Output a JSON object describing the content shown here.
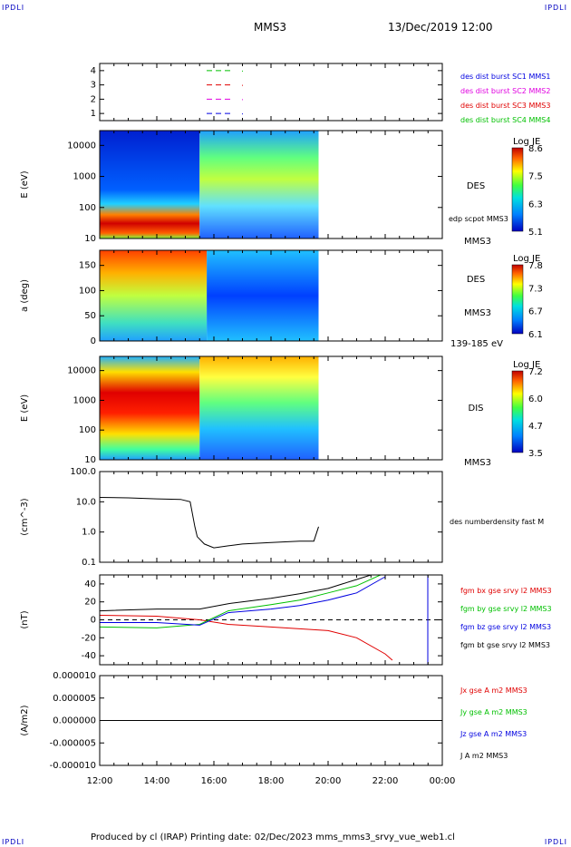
{
  "header": {
    "corner_tl": "IPDLI",
    "corner_tr": "IPDLI",
    "corner_bl": "IPDLI",
    "corner_br": "IPDLI",
    "spacecraft": "MMS3",
    "datetime": "13/Dec/2019 12:00"
  },
  "footer": {
    "text": "Produced by cl (IRAP)   Printing date: 02/Dec/2023   mms_mms3_srvy_vue_web1.cl"
  },
  "colors": {
    "red": "#e00000",
    "green": "#00c000",
    "blue": "#0000e0",
    "magenta": "#e000e0",
    "black": "#000000"
  },
  "chart_data": [
    {
      "type": "line",
      "panel": "burst-intervals",
      "ylim": [
        0.5,
        4.5
      ],
      "y_ticks": [
        "1",
        "2",
        "3",
        "4"
      ],
      "legend": [
        {
          "label": "des dist burst SC1 MMS1",
          "color": "#0000e0"
        },
        {
          "label": "des dist burst SC2 MMS2",
          "color": "#e000e0"
        },
        {
          "label": "des dist burst SC3 MMS3",
          "color": "#e00000"
        },
        {
          "label": "des dist burst SC4 MMS4",
          "color": "#00c000"
        }
      ],
      "series": [
        {
          "level": 4,
          "color": "#00c000",
          "x": [
            "16:00",
            "16:40"
          ]
        },
        {
          "level": 3,
          "color": "#e00000",
          "x": [
            "16:00",
            "16:40"
          ]
        },
        {
          "level": 2,
          "color": "#e000e0",
          "x": [
            "16:00",
            "16:40"
          ]
        },
        {
          "level": 1,
          "color": "#0000e0",
          "x": [
            "16:00",
            "16:40"
          ]
        }
      ]
    },
    {
      "type": "heatmap",
      "panel": "des-energy-spectrogram",
      "ylabel": "E (eV)",
      "y_scale": "log",
      "y_ticks": [
        "10",
        "100",
        "1000",
        "10000"
      ],
      "ylim": [
        10,
        30000
      ],
      "label": "DES",
      "sc_label": "MMS3",
      "overlay_label": "edp scpot MMS3",
      "colorbar": {
        "title": "Log JE",
        "ticks": [
          "8.6",
          "7.5",
          "6.3",
          "5.1"
        ],
        "range": [
          5.1,
          8.6
        ]
      }
    },
    {
      "type": "heatmap",
      "panel": "des-pitch-angle",
      "ylabel": "a (deg)",
      "y_ticks": [
        "0",
        "50",
        "100",
        "150"
      ],
      "ylim": [
        0,
        180
      ],
      "label": "DES",
      "sc_label": "MMS3",
      "energy_range": "139-185 eV",
      "colorbar": {
        "title": "Log JE",
        "ticks": [
          "7.8",
          "7.3",
          "6.7",
          "6.1"
        ],
        "range": [
          6.1,
          7.8
        ]
      }
    },
    {
      "type": "heatmap",
      "panel": "dis-energy-spectrogram",
      "ylabel": "E (eV)",
      "y_scale": "log",
      "y_ticks": [
        "10",
        "100",
        "1000",
        "10000"
      ],
      "ylim": [
        10,
        30000
      ],
      "label": "DIS",
      "sc_label": "MMS3",
      "colorbar": {
        "title": "Log JE",
        "ticks": [
          "7.2",
          "6.0",
          "4.7",
          "3.5"
        ],
        "range": [
          3.5,
          7.2
        ]
      }
    },
    {
      "type": "line",
      "panel": "density",
      "ylabel": "(cm^-3)",
      "y_scale": "log",
      "y_ticks": [
        "0.1",
        "1.0",
        "10.0",
        "100.0"
      ],
      "ylim": [
        0.1,
        100
      ],
      "series": [
        {
          "name": "des numberdensity fast M",
          "color": "#000000",
          "x": [
            "12:00",
            "13:00",
            "14:00",
            "14:50",
            "15:10",
            "15:20",
            "15:25",
            "15:40",
            "16:00",
            "16:30",
            "17:00",
            "18:00",
            "19:00",
            "19:30",
            "19:40"
          ],
          "values": [
            14,
            13.5,
            12.5,
            12,
            10,
            1.5,
            0.7,
            0.4,
            0.3,
            0.35,
            0.4,
            0.45,
            0.5,
            0.5,
            1.5
          ]
        }
      ]
    },
    {
      "type": "line",
      "panel": "magnetic-field",
      "ylabel": "(nT)",
      "y_ticks": [
        "-40",
        "-20",
        "0",
        "20",
        "40"
      ],
      "ylim": [
        -50,
        50
      ],
      "series": [
        {
          "name": "fgm bx gse srvy l2 MMS3",
          "color": "#e00000",
          "x": [
            "12:00",
            "14:00",
            "15:30",
            "16:30",
            "18:00",
            "20:00",
            "21:00",
            "22:00",
            "22:15"
          ],
          "values": [
            5,
            4,
            0,
            -5,
            -8,
            -12,
            -20,
            -38,
            -45
          ]
        },
        {
          "name": "fgm by gse srvy l2 MMS3",
          "color": "#00c000",
          "x": [
            "12:00",
            "14:00",
            "15:30",
            "16:30",
            "18:00",
            "19:00",
            "20:00",
            "21:00",
            "21:50"
          ],
          "values": [
            -8,
            -9,
            -5,
            10,
            17,
            22,
            30,
            38,
            50
          ]
        },
        {
          "name": "fgm bz gse srvy l2 MMS3",
          "color": "#0000e0",
          "x": [
            "12:00",
            "14:00",
            "15:30",
            "16:30",
            "18:00",
            "19:00",
            "20:00",
            "21:00",
            "22:00"
          ],
          "values": [
            -3,
            -3,
            -6,
            8,
            12,
            16,
            22,
            30,
            48
          ]
        },
        {
          "name": "fgm bt gse srvy l2 MMS3",
          "color": "#000000",
          "x": [
            "12:00",
            "14:00",
            "15:30",
            "16:30",
            "18:00",
            "19:00",
            "20:00",
            "20:30",
            "21:00",
            "21:30"
          ],
          "values": [
            10,
            12,
            12,
            18,
            24,
            29,
            35,
            40,
            45,
            50
          ]
        }
      ]
    },
    {
      "type": "line",
      "panel": "current-density",
      "ylabel": "(A/m2)",
      "y_ticks": [
        "-0.000010",
        "-0.000005",
        "0.000000",
        "0.000005",
        "0.000010"
      ],
      "ylim": [
        -1e-05,
        1e-05
      ],
      "series": [
        {
          "name": "Jx gse A m2 MMS3",
          "color": "#e00000"
        },
        {
          "name": "Jy gse A m2 MMS3",
          "color": "#00c000"
        },
        {
          "name": "Jz gse A m2 MMS3",
          "color": "#0000e0"
        },
        {
          "name": "J A m2 MMS3",
          "color": "#000000"
        }
      ]
    }
  ],
  "x_axis": {
    "ticks": [
      "12:00",
      "14:00",
      "16:00",
      "18:00",
      "20:00",
      "22:00",
      "00:00"
    ],
    "range": [
      "12:00",
      "00:00"
    ]
  }
}
